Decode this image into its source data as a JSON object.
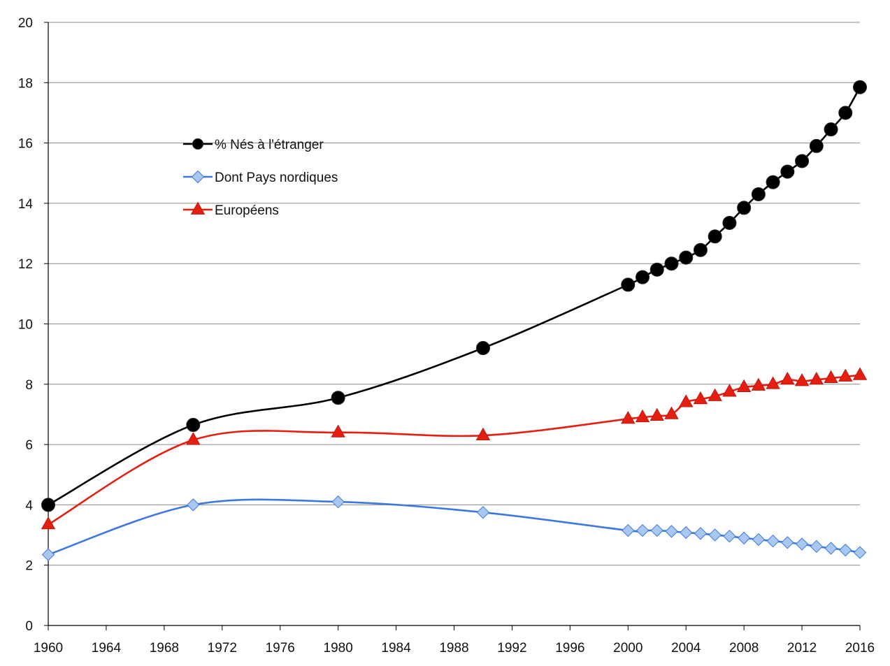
{
  "chart_data": {
    "type": "line",
    "title": "",
    "xlabel": "",
    "ylabel": "",
    "xlim": [
      1960,
      2016
    ],
    "ylim": [
      0,
      20
    ],
    "x_ticks": [
      1960,
      1964,
      1968,
      1972,
      1976,
      1980,
      1984,
      1988,
      1992,
      1996,
      2000,
      2004,
      2008,
      2012,
      2016
    ],
    "y_ticks": [
      0,
      2,
      4,
      6,
      8,
      10,
      12,
      14,
      16,
      18,
      20
    ],
    "grid": "horizontal",
    "legend_position": "upper-left-inside",
    "series": [
      {
        "name": "% Nés à l'étranger",
        "color": "#000000",
        "marker": "circle",
        "x": [
          1960,
          1970,
          1980,
          1990,
          2000,
          2001,
          2002,
          2003,
          2004,
          2005,
          2006,
          2007,
          2008,
          2009,
          2010,
          2011,
          2012,
          2013,
          2014,
          2015,
          2016
        ],
        "values": [
          4.0,
          6.65,
          7.55,
          9.2,
          11.3,
          11.55,
          11.8,
          12.0,
          12.2,
          12.45,
          12.9,
          13.35,
          13.85,
          14.3,
          14.7,
          15.05,
          15.4,
          15.9,
          16.45,
          17.0,
          17.85
        ]
      },
      {
        "name": "Dont Pays nordiques",
        "color": "#3C78E0",
        "fill": "#A8C8F0",
        "marker": "diamond",
        "x": [
          1960,
          1970,
          1980,
          1990,
          2000,
          2001,
          2002,
          2003,
          2004,
          2005,
          2006,
          2007,
          2008,
          2009,
          2010,
          2011,
          2012,
          2013,
          2014,
          2015,
          2016
        ],
        "values": [
          2.35,
          4.0,
          4.1,
          3.75,
          3.15,
          3.15,
          3.15,
          3.12,
          3.08,
          3.05,
          3.0,
          2.96,
          2.9,
          2.85,
          2.8,
          2.75,
          2.7,
          2.62,
          2.56,
          2.5,
          2.42
        ]
      },
      {
        "name": "Européens",
        "color": "#E61E10",
        "marker": "triangle",
        "x": [
          1960,
          1970,
          1980,
          1990,
          2000,
          2001,
          2002,
          2003,
          2004,
          2005,
          2006,
          2007,
          2008,
          2009,
          2010,
          2011,
          2012,
          2013,
          2014,
          2015,
          2016
        ],
        "values": [
          3.35,
          6.15,
          6.4,
          6.3,
          6.85,
          6.9,
          6.95,
          7.0,
          7.4,
          7.5,
          7.6,
          7.75,
          7.9,
          7.95,
          8.0,
          8.15,
          8.1,
          8.15,
          8.2,
          8.25,
          8.3
        ]
      }
    ]
  }
}
